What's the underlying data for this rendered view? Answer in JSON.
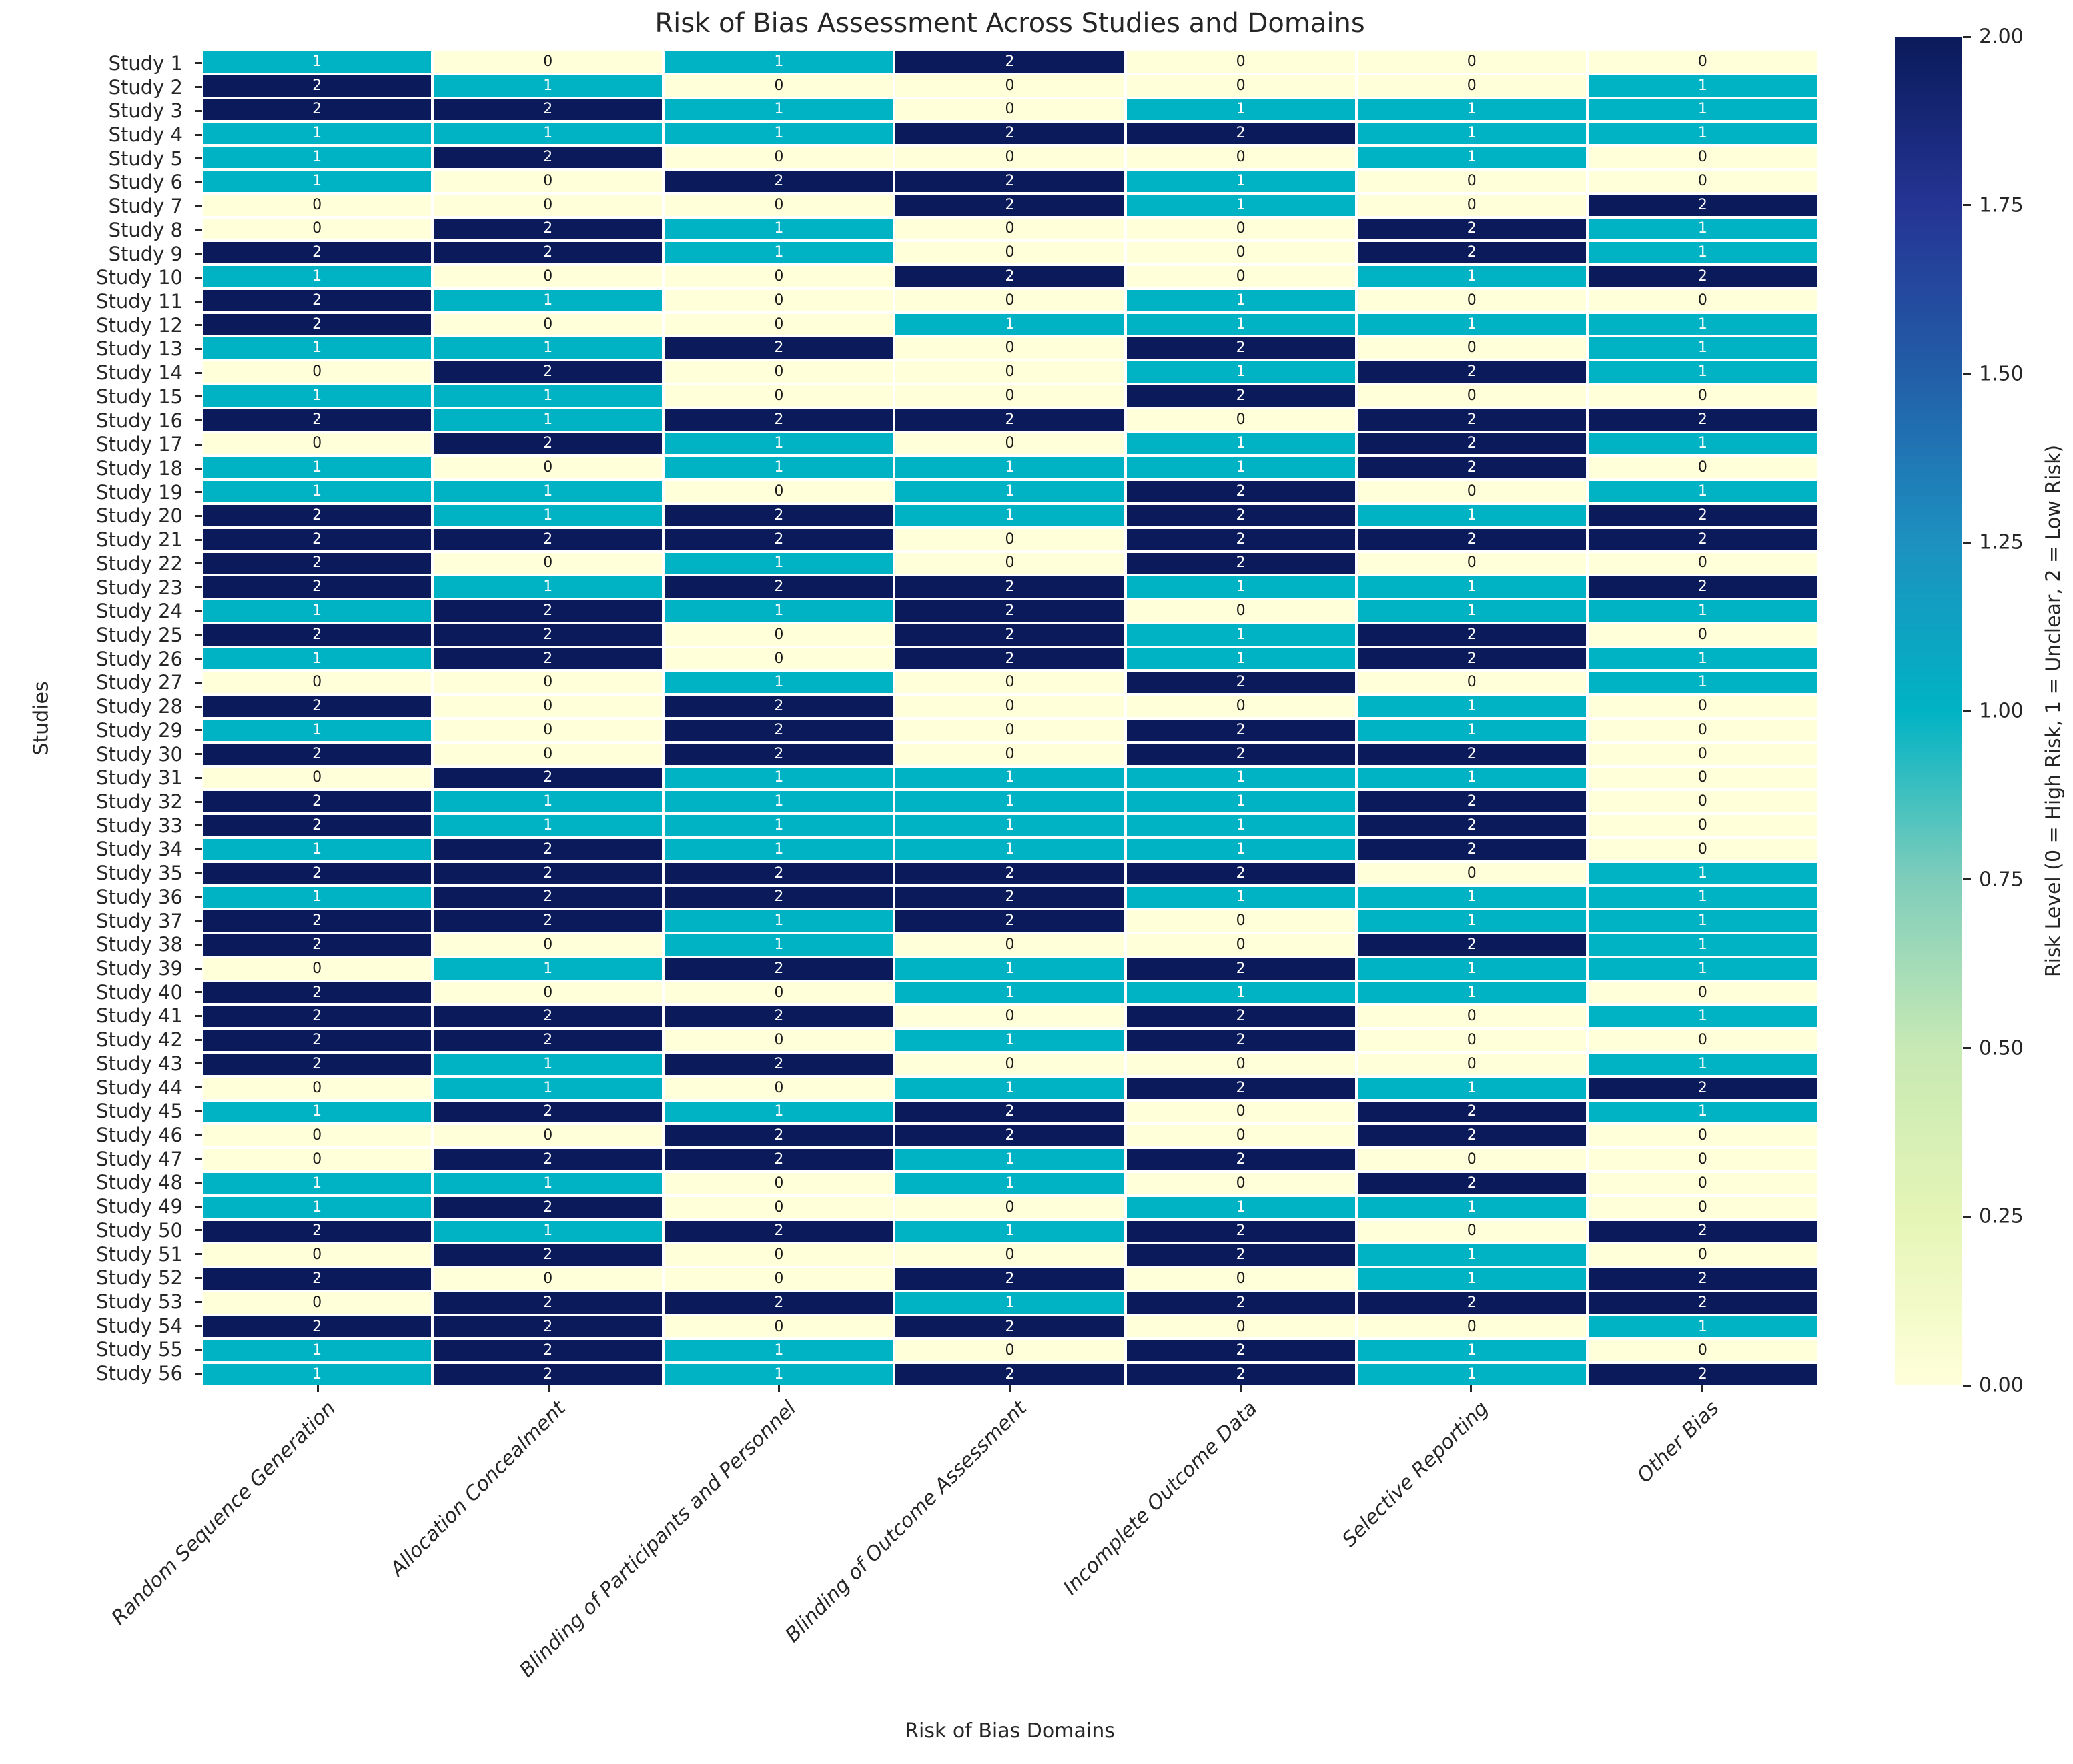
{
  "title": "Risk of Bias Assessment Across Studies and Domains",
  "chart_data": {
    "type": "heatmap",
    "title": "Risk of Bias Assessment Across Studies and Domains",
    "xlabel": "Risk of Bias Domains",
    "ylabel": "Studies",
    "legend_position": "colorbar-right",
    "grid": false,
    "value_range": [
      0,
      2
    ],
    "columns": [
      "Random Sequence Generation",
      "Allocation Concealment",
      "Blinding of Participants and Personnel",
      "Blinding of Outcome Assessment",
      "Incomplete Outcome Data",
      "Selective Reporting",
      "Other Bias"
    ],
    "rows": [
      "Study 1",
      "Study 2",
      "Study 3",
      "Study 4",
      "Study 5",
      "Study 6",
      "Study 7",
      "Study 8",
      "Study 9",
      "Study 10",
      "Study 11",
      "Study 12",
      "Study 13",
      "Study 14",
      "Study 15",
      "Study 16",
      "Study 17",
      "Study 18",
      "Study 19",
      "Study 20",
      "Study 21",
      "Study 22",
      "Study 23",
      "Study 24",
      "Study 25",
      "Study 26",
      "Study 27",
      "Study 28",
      "Study 29",
      "Study 30",
      "Study 31",
      "Study 32",
      "Study 33",
      "Study 34",
      "Study 35",
      "Study 36",
      "Study 37",
      "Study 38",
      "Study 39",
      "Study 40",
      "Study 41",
      "Study 42",
      "Study 43",
      "Study 44",
      "Study 45",
      "Study 46",
      "Study 47",
      "Study 48",
      "Study 49",
      "Study 50",
      "Study 51",
      "Study 52",
      "Study 53",
      "Study 54",
      "Study 55",
      "Study 56"
    ],
    "values": [
      [
        1,
        0,
        1,
        2,
        0,
        0,
        0
      ],
      [
        2,
        1,
        0,
        0,
        0,
        0,
        1
      ],
      [
        2,
        2,
        1,
        0,
        1,
        1,
        1
      ],
      [
        1,
        1,
        1,
        2,
        2,
        1,
        1
      ],
      [
        1,
        2,
        0,
        0,
        0,
        1,
        0
      ],
      [
        1,
        0,
        2,
        2,
        1,
        0,
        0
      ],
      [
        0,
        0,
        0,
        2,
        1,
        0,
        2
      ],
      [
        0,
        2,
        1,
        0,
        0,
        2,
        1
      ],
      [
        2,
        2,
        1,
        0,
        0,
        2,
        1
      ],
      [
        1,
        0,
        0,
        2,
        0,
        1,
        2
      ],
      [
        2,
        1,
        0,
        0,
        1,
        0,
        0
      ],
      [
        2,
        0,
        0,
        1,
        1,
        1,
        1
      ],
      [
        1,
        1,
        2,
        0,
        2,
        0,
        1
      ],
      [
        0,
        2,
        0,
        0,
        1,
        2,
        1
      ],
      [
        1,
        1,
        0,
        0,
        2,
        0,
        0
      ],
      [
        2,
        1,
        2,
        2,
        0,
        2,
        2
      ],
      [
        0,
        2,
        1,
        0,
        1,
        2,
        1
      ],
      [
        1,
        0,
        1,
        1,
        1,
        2,
        0
      ],
      [
        1,
        1,
        0,
        1,
        2,
        0,
        1
      ],
      [
        2,
        1,
        2,
        1,
        2,
        1,
        2
      ],
      [
        2,
        2,
        2,
        0,
        2,
        2,
        2
      ],
      [
        2,
        0,
        1,
        0,
        2,
        0,
        0
      ],
      [
        2,
        1,
        2,
        2,
        1,
        1,
        2
      ],
      [
        1,
        2,
        1,
        2,
        0,
        1,
        1
      ],
      [
        2,
        2,
        0,
        2,
        1,
        2,
        0
      ],
      [
        1,
        2,
        0,
        2,
        1,
        2,
        1
      ],
      [
        0,
        0,
        1,
        0,
        2,
        0,
        1
      ],
      [
        2,
        0,
        2,
        0,
        0,
        1,
        0
      ],
      [
        1,
        0,
        2,
        0,
        2,
        1,
        0
      ],
      [
        2,
        0,
        2,
        0,
        2,
        2,
        0
      ],
      [
        0,
        2,
        1,
        1,
        1,
        1,
        0
      ],
      [
        2,
        1,
        1,
        1,
        1,
        2,
        0
      ],
      [
        2,
        1,
        1,
        1,
        1,
        2,
        0
      ],
      [
        1,
        2,
        1,
        1,
        1,
        2,
        0
      ],
      [
        2,
        2,
        2,
        2,
        2,
        0,
        1
      ],
      [
        1,
        2,
        2,
        2,
        1,
        1,
        1
      ],
      [
        2,
        2,
        1,
        2,
        0,
        1,
        1
      ],
      [
        2,
        0,
        1,
        0,
        0,
        2,
        1
      ],
      [
        0,
        1,
        2,
        1,
        2,
        1,
        1
      ],
      [
        2,
        0,
        0,
        1,
        1,
        1,
        0
      ],
      [
        2,
        2,
        2,
        0,
        2,
        0,
        1
      ],
      [
        2,
        2,
        0,
        1,
        2,
        0,
        0
      ],
      [
        2,
        1,
        2,
        0,
        0,
        0,
        1
      ],
      [
        0,
        1,
        0,
        1,
        2,
        1,
        2
      ],
      [
        1,
        2,
        1,
        2,
        0,
        2,
        1
      ],
      [
        0,
        0,
        2,
        2,
        0,
        2,
        0
      ],
      [
        0,
        2,
        2,
        1,
        2,
        0,
        0
      ],
      [
        1,
        1,
        0,
        1,
        0,
        2,
        0
      ],
      [
        1,
        2,
        0,
        0,
        1,
        1,
        0
      ],
      [
        2,
        1,
        2,
        1,
        2,
        0,
        2
      ],
      [
        0,
        2,
        0,
        0,
        2,
        1,
        0
      ],
      [
        2,
        0,
        0,
        2,
        0,
        1,
        2
      ],
      [
        0,
        2,
        2,
        1,
        2,
        2,
        2
      ],
      [
        2,
        2,
        0,
        2,
        0,
        0,
        1
      ],
      [
        1,
        2,
        1,
        0,
        2,
        1,
        0
      ],
      [
        1,
        2,
        1,
        2,
        2,
        1,
        2
      ]
    ],
    "value_colors": {
      "0": "#ffffd9",
      "1": "#00b3c4",
      "2": "#0a1a5a"
    },
    "annotation_text_colors": {
      "0": "#1a1a1a",
      "1": "#ffffff",
      "2": "#ffffff"
    },
    "colorbar": {
      "label": "Risk Level (0 = High Risk, 1 = Unclear, 2 = Low Risk)",
      "tick_labels": [
        "2.00",
        "1.75",
        "1.50",
        "1.25",
        "1.00",
        "0.75",
        "0.50",
        "0.25",
        "0.00"
      ],
      "tick_values": [
        2.0,
        1.75,
        1.5,
        1.25,
        1.0,
        0.75,
        0.5,
        0.25,
        0.0
      ],
      "gradient_stops_bottom_to_top": [
        "#ffffd9",
        "#e5f5b6",
        "#c7e9b4",
        "#7fcdbb",
        "#00b3c4",
        "#1d91c0",
        "#225ea8",
        "#253494",
        "#0a1a5a"
      ]
    }
  }
}
